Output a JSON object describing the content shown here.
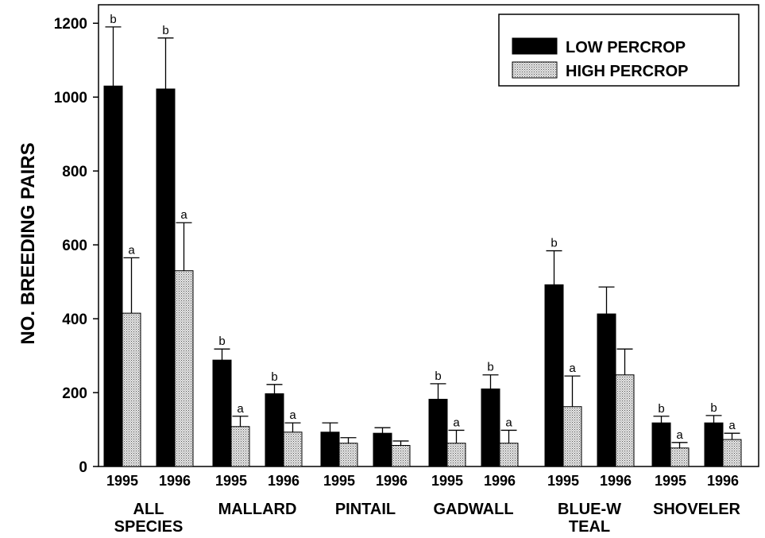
{
  "chart_data": {
    "type": "bar",
    "title": "",
    "xlabel": "",
    "ylabel": "NO. BREEDING PAIRS",
    "ylim": [
      0,
      1250
    ],
    "yticks": [
      0,
      200,
      400,
      600,
      800,
      1000,
      1200
    ],
    "grid": false,
    "legend_position": "top-right",
    "groups": [
      {
        "label_lines": [
          "ALL",
          "SPECIES"
        ],
        "years": [
          "1995",
          "1996"
        ]
      },
      {
        "label_lines": [
          "MALLARD"
        ],
        "years": [
          "1995",
          "1996"
        ]
      },
      {
        "label_lines": [
          "PINTAIL"
        ],
        "years": [
          "1995",
          "1996"
        ]
      },
      {
        "label_lines": [
          "GADWALL"
        ],
        "years": [
          "1995",
          "1996"
        ]
      },
      {
        "label_lines": [
          "BLUE-W",
          "TEAL"
        ],
        "years": [
          "1995",
          "1996"
        ]
      },
      {
        "label_lines": [
          "SHOVELER"
        ],
        "years": [
          "1995",
          "1996"
        ]
      }
    ],
    "series": [
      {
        "name": "LOW PERCROP",
        "color": "#000000",
        "fill": "solid",
        "values": [
          1030,
          1022,
          288,
          197,
          93,
          90,
          182,
          210,
          492,
          413,
          118,
          118
        ],
        "error": [
          160,
          138,
          30,
          25,
          25,
          15,
          42,
          38,
          92,
          73,
          18,
          20
        ],
        "letters": [
          "b",
          "b",
          "b",
          "b",
          "",
          "",
          "b",
          "b",
          "b",
          "",
          "b",
          "b"
        ]
      },
      {
        "name": "HIGH PERCROP",
        "color": "#bdbdbd",
        "fill": "stipple",
        "values": [
          415,
          530,
          108,
          93,
          63,
          57,
          63,
          63,
          162,
          248,
          50,
          73
        ],
        "error": [
          150,
          130,
          28,
          25,
          15,
          12,
          35,
          35,
          83,
          70,
          15,
          17
        ],
        "letters": [
          "a",
          "a",
          "a",
          "a",
          "",
          "",
          "a",
          "a",
          "a",
          "",
          "a",
          "a"
        ]
      }
    ]
  }
}
